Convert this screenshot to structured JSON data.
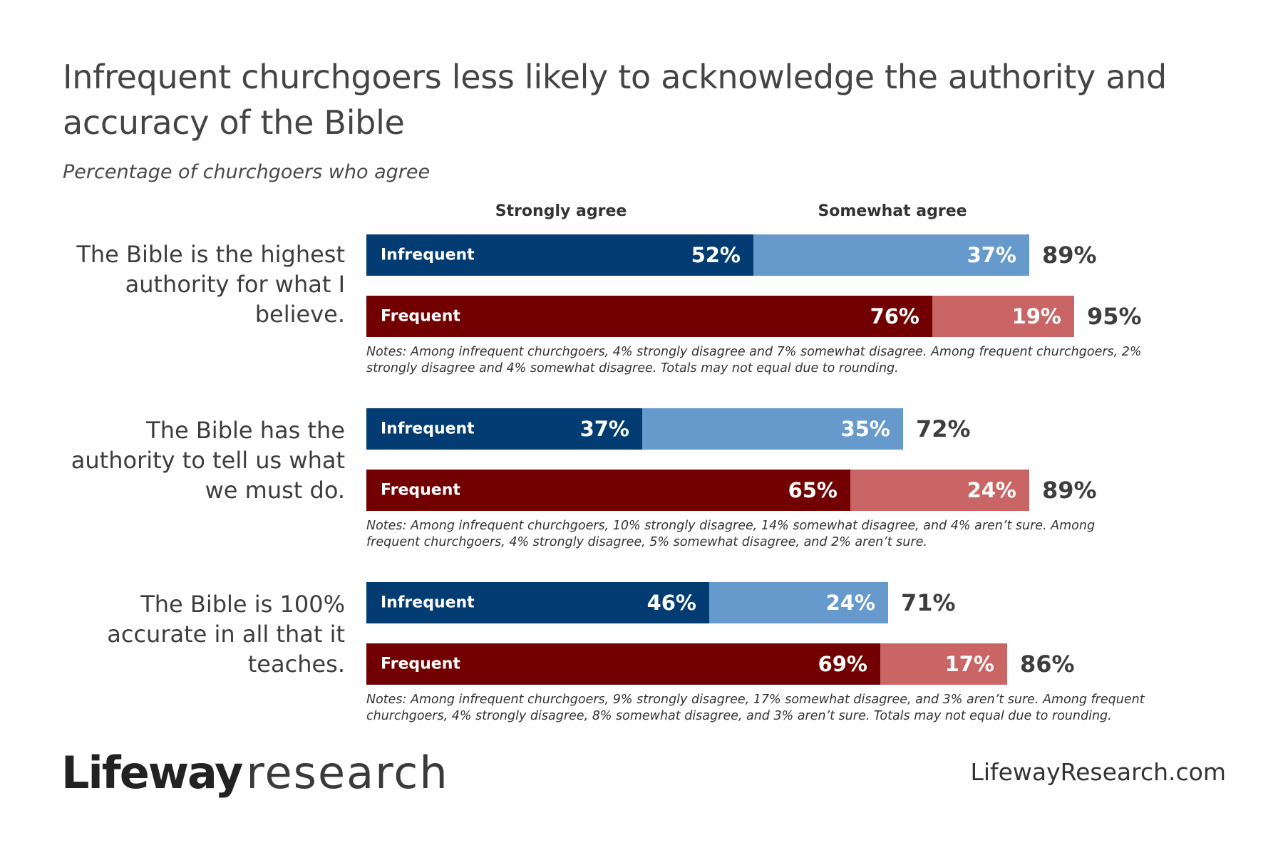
{
  "title": "Infrequent churchgoers less likely to acknowledge the authority and accuracy of the Bible",
  "subtitle": "Percentage of churchgoers who agree",
  "colors": {
    "infrequent_strong": "#033c73",
    "infrequent_somewhat": "#6699cc",
    "frequent_strong": "#720000",
    "frequent_somewhat": "#c96565"
  },
  "chart_data": {
    "type": "bar",
    "orientation": "horizontal",
    "stacked": true,
    "title": "Infrequent churchgoers less likely to acknowledge the authority and accuracy of the Bible",
    "subtitle": "Percentage of churchgoers who agree",
    "legend": [
      "Strongly agree",
      "Somewhat agree"
    ],
    "groups": [
      {
        "statement": "The Bible is the highest authority for what I believe.",
        "bars": [
          {
            "name": "Infrequent",
            "values": [
              52,
              37
            ],
            "labels": [
              "52%",
              "37%"
            ],
            "total": "89%"
          },
          {
            "name": "Frequent",
            "values": [
              76,
              19
            ],
            "labels": [
              "76%",
              "19%"
            ],
            "total": "95%"
          }
        ],
        "note": "Notes: Among infrequent churchgoers, 4% strongly disagree and 7% somewhat disagree. Among frequent churchgoers, 2% strongly disagree and 4% somewhat disagree. Totals may not equal due to rounding."
      },
      {
        "statement": "The Bible has the authority to tell us what we must do.",
        "bars": [
          {
            "name": "Infrequent",
            "values": [
              37,
              35
            ],
            "labels": [
              "37%",
              "35%"
            ],
            "total": "72%"
          },
          {
            "name": "Frequent",
            "values": [
              65,
              24
            ],
            "labels": [
              "65%",
              "24%"
            ],
            "total": "89%"
          }
        ],
        "note": "Notes: Among infrequent churchgoers, 10% strongly disagree, 14% somewhat disagree, and 4% aren’t sure. Among frequent churchgoers, 4% strongly disagree, 5% somewhat disagree, and 2% aren’t sure."
      },
      {
        "statement": "The Bible is 100% accurate in all that it teaches.",
        "bars": [
          {
            "name": "Infrequent",
            "values": [
              46,
              24
            ],
            "labels": [
              "46%",
              "24%"
            ],
            "total": "71%"
          },
          {
            "name": "Frequent",
            "values": [
              69,
              17
            ],
            "labels": [
              "69%",
              "17%"
            ],
            "total": "86%"
          }
        ],
        "note": "Notes: Among infrequent churchgoers, 9% strongly disagree, 17% somewhat disagree, and 3% aren’t sure. Among frequent churchgoers, 4% strongly disagree, 8% somewhat disagree, and 3% aren’t sure. Totals may not equal due to rounding."
      }
    ]
  },
  "footer": {
    "logo_bold": "Lifeway",
    "logo_light": "research",
    "website": "LifewayResearch.com"
  }
}
